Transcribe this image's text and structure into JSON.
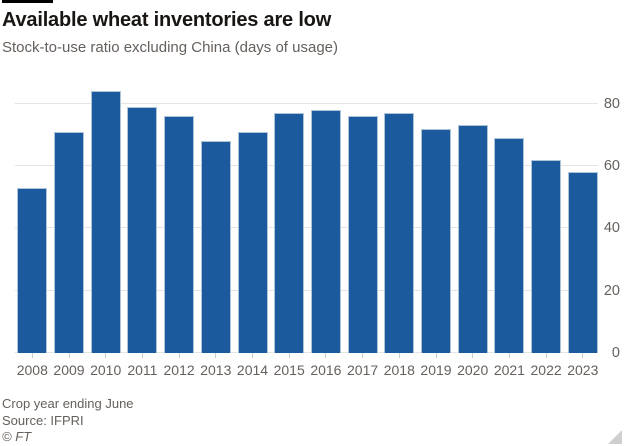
{
  "header": {
    "title": "Available wheat inventories are low",
    "subtitle": "Stock-to-use ratio excluding China (days of usage)"
  },
  "chart_data": {
    "type": "bar",
    "title": "Available wheat inventories are low",
    "subtitle": "Stock-to-use ratio excluding China (days of usage)",
    "categories": [
      "2008",
      "2009",
      "2010",
      "2011",
      "2012",
      "2013",
      "2014",
      "2015",
      "2016",
      "2017",
      "2018",
      "2019",
      "2020",
      "2021",
      "2022",
      "2023"
    ],
    "values": [
      53,
      71,
      84,
      79,
      76,
      68,
      71,
      77,
      78,
      76,
      77,
      72,
      73,
      69,
      62,
      58
    ],
    "xlabel": "",
    "ylabel": "",
    "ylim": [
      0,
      86
    ],
    "yticks": [
      0,
      20,
      40,
      60,
      80
    ],
    "ytick_side": "right",
    "grid": true,
    "legend": "none",
    "bar_color": "#1b5a9c",
    "bar_edge_color": "#b0c4d9",
    "gridline_color": "#e4e4e4",
    "tick_color": "#cccccc",
    "axis_text_color": "#66605c"
  },
  "footer": {
    "note": "Crop year ending June",
    "source": "Source: IFPRI",
    "copyright": "© FT"
  },
  "branding": {
    "stub_color": "#000000",
    "title_color": "#181513",
    "subtitle_color": "#66605c"
  }
}
